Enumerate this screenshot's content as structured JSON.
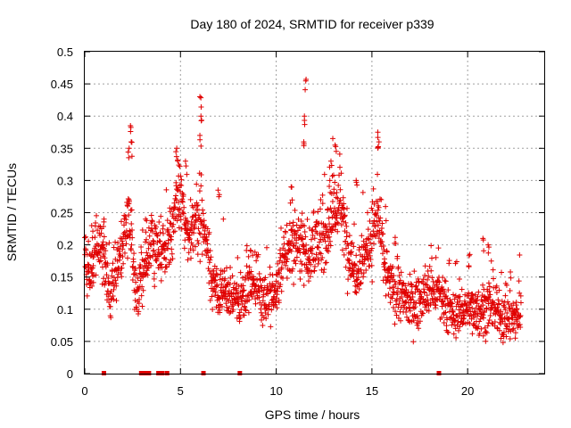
{
  "chart_data": {
    "type": "scatter",
    "title": "Day 180 of 2024, SRMTID for receiver p339",
    "xlabel": "GPS time / hours",
    "ylabel": "SRMTID / TECUs",
    "xlim": [
      0,
      24
    ],
    "ylim": [
      0,
      0.5
    ],
    "x_ticks": [
      0,
      5,
      10,
      15,
      20
    ],
    "x_tick_labels": [
      "0",
      "5",
      "10",
      "15",
      "20"
    ],
    "y_ticks": [
      0,
      0.05,
      0.1,
      0.15,
      0.2,
      0.25,
      0.3,
      0.35,
      0.4,
      0.45,
      0.5
    ],
    "y_tick_labels": [
      "0",
      "0.05",
      "0.1",
      "0.15",
      "0.2",
      "0.25",
      "0.3",
      "0.35",
      "0.4",
      "0.45",
      "0.5"
    ],
    "grid": true,
    "marker": "plus",
    "color": "#e00000",
    "series": [
      {
        "name": "SRMTID",
        "anchors_x": [
          0.0,
          0.25,
          0.5,
          0.8,
          1.1,
          1.3,
          1.6,
          2.0,
          2.3,
          2.6,
          2.8,
          3.2,
          3.5,
          3.9,
          4.3,
          4.7,
          5.0,
          5.4,
          5.7,
          6.1,
          6.5,
          6.9,
          7.3,
          7.7,
          8.1,
          8.5,
          8.9,
          9.3,
          9.7,
          10.1,
          10.5,
          10.9,
          11.3,
          11.7,
          12.1,
          12.5,
          12.9,
          13.3,
          13.7,
          14.1,
          14.5,
          14.9,
          15.3,
          15.7,
          16.1,
          16.5,
          16.9,
          17.3,
          17.7,
          18.1,
          18.5,
          18.9,
          19.3,
          19.7,
          20.1,
          20.5,
          20.9,
          21.3,
          21.7,
          22.1,
          22.5,
          22.8
        ],
        "anchors_y": [
          0.17,
          0.15,
          0.19,
          0.2,
          0.17,
          0.12,
          0.16,
          0.2,
          0.25,
          0.15,
          0.12,
          0.17,
          0.2,
          0.19,
          0.2,
          0.25,
          0.27,
          0.2,
          0.24,
          0.25,
          0.17,
          0.12,
          0.13,
          0.12,
          0.11,
          0.14,
          0.15,
          0.12,
          0.11,
          0.14,
          0.19,
          0.2,
          0.21,
          0.18,
          0.2,
          0.21,
          0.24,
          0.27,
          0.2,
          0.16,
          0.18,
          0.2,
          0.25,
          0.16,
          0.13,
          0.12,
          0.11,
          0.11,
          0.12,
          0.13,
          0.12,
          0.1,
          0.09,
          0.1,
          0.1,
          0.1,
          0.1,
          0.1,
          0.09,
          0.09,
          0.08,
          0.1
        ],
        "spikes": [
          [
            2.4,
            0.385
          ],
          [
            2.45,
            0.36
          ],
          [
            4.8,
            0.35
          ],
          [
            6.05,
            0.43
          ],
          [
            6.1,
            0.4
          ],
          [
            6.05,
            0.37
          ],
          [
            11.55,
            0.457
          ],
          [
            11.5,
            0.4
          ],
          [
            11.45,
            0.36
          ],
          [
            12.9,
            0.33
          ],
          [
            13.1,
            0.355
          ],
          [
            15.3,
            0.375
          ],
          [
            15.35,
            0.36
          ],
          [
            14.2,
            0.3
          ],
          [
            4.9,
            0.33
          ],
          [
            5.3,
            0.33
          ],
          [
            10.8,
            0.29
          ],
          [
            12.8,
            0.3
          ],
          [
            7.0,
            0.285
          ],
          [
            2.3,
            0.35
          ],
          [
            20.8,
            0.21
          ],
          [
            21.1,
            0.2
          ],
          [
            20.1,
            0.185
          ],
          [
            0.4,
            0.23
          ],
          [
            1.0,
            0.24
          ],
          [
            3.2,
            0.24
          ]
        ],
        "zeros_x": [
          1.0,
          2.95,
          3.1,
          3.2,
          3.35,
          3.85,
          3.95,
          4.05,
          4.3,
          6.2,
          8.1,
          18.5
        ]
      }
    ]
  }
}
